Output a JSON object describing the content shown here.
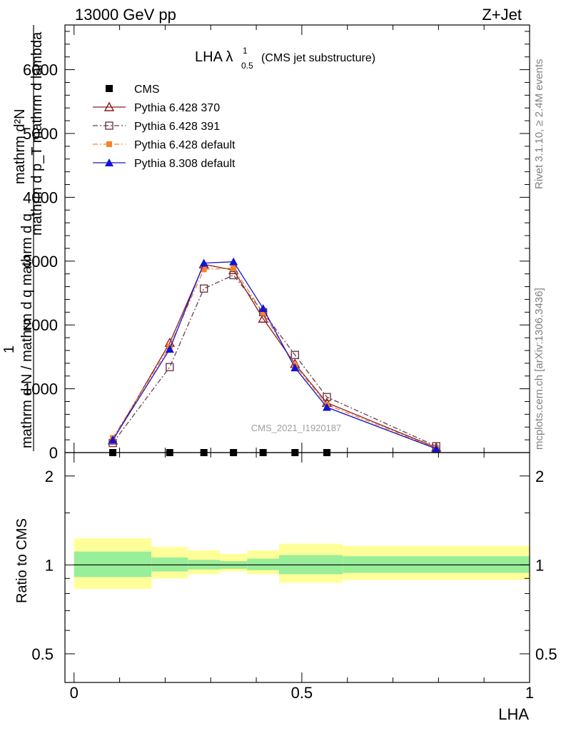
{
  "header": {
    "left": "13000 GeV pp",
    "right": "Z+Jet"
  },
  "side_labels": {
    "rivet": "Rivet 3.1.10, ≥ 2.4M events",
    "mcplots": "mcplots.cern.ch [arXiv:1306.3436]"
  },
  "watermark": "CMS_2021_I1920187",
  "colors": {
    "cms": "#000000",
    "py370": "#8b1a1a",
    "py391": "#6b3a4a",
    "py6def": "#f5842a",
    "py8def": "#1414d0",
    "band_inner": "#99ee99",
    "band_outer": "#ffff99"
  },
  "chart_data": [
    {
      "type": "line",
      "title_main": "LHA λ",
      "title_sup": "1",
      "title_sub": "0.5",
      "title_suffix": "(CMS jet substructure)",
      "ylabel_num": "mathrm d²N",
      "ylabel_num2": "mathrm d p_T mathrm d lambda",
      "ylabel_one": "1",
      "ylabel_den": "mathrm d N / mathrm d q mathrm d q",
      "ylim": [
        0,
        6700
      ],
      "xlim": [
        -0.02,
        1.0
      ],
      "y_ticks": [
        0,
        1000,
        2000,
        3000,
        4000,
        5000,
        6000
      ],
      "y_tick_labels": [
        "0",
        "1000",
        "2000",
        "3000",
        "4000",
        "5000",
        "6000"
      ],
      "legend_position": "top-left",
      "series": [
        {
          "name": "CMS",
          "key": "cms",
          "marker": "square-filled",
          "line": "none",
          "x": [
            0.085,
            0.21,
            0.285,
            0.35,
            0.415,
            0.485,
            0.555
          ],
          "y": [
            0,
            0,
            0,
            0,
            0,
            0,
            0
          ]
        },
        {
          "name": "Pythia 6.428 370",
          "key": "py370",
          "marker": "triangle-open",
          "line": "solid",
          "x": [
            0.085,
            0.21,
            0.285,
            0.35,
            0.415,
            0.485,
            0.555,
            0.795
          ],
          "y": [
            190,
            1720,
            2950,
            2860,
            2100,
            1390,
            780,
            80
          ]
        },
        {
          "name": "Pythia 6.428 391",
          "key": "py391",
          "marker": "square-open",
          "line": "dashdot",
          "x": [
            0.085,
            0.21,
            0.285,
            0.35,
            0.415,
            0.485,
            0.555,
            0.795
          ],
          "y": [
            150,
            1340,
            2570,
            2780,
            2200,
            1530,
            870,
            100
          ]
        },
        {
          "name": "Pythia 6.428 default",
          "key": "py6def",
          "marker": "square-filled-small",
          "line": "dashdot",
          "x": [
            0.085,
            0.21,
            0.285,
            0.35,
            0.415,
            0.485,
            0.555,
            0.795
          ],
          "y": [
            230,
            1660,
            2870,
            2890,
            2190,
            1370,
            750,
            70
          ]
        },
        {
          "name": "Pythia 8.308 default",
          "key": "py8def",
          "marker": "triangle-filled",
          "line": "solid",
          "x": [
            0.085,
            0.21,
            0.285,
            0.35,
            0.415,
            0.485,
            0.555,
            0.795
          ],
          "y": [
            200,
            1620,
            2970,
            2990,
            2260,
            1330,
            710,
            60
          ]
        }
      ]
    },
    {
      "type": "area",
      "ylabel": "Ratio to CMS",
      "xlabel": "LHA",
      "ylim": [
        0.4,
        2.4
      ],
      "log_y": true,
      "xlim": [
        -0.02,
        1.0
      ],
      "x_ticks": [
        0,
        0.5,
        1
      ],
      "x_tick_labels": [
        "0",
        "0.5",
        "1"
      ],
      "y_tick_labels_major": [
        "0.5",
        "1",
        "2"
      ],
      "y_ticks_major": [
        0.5,
        1,
        2
      ],
      "bins": [
        {
          "lo": 0.0,
          "hi": 0.17,
          "inner_lo": 0.91,
          "inner_hi": 1.11,
          "outer_lo": 0.83,
          "outer_hi": 1.23
        },
        {
          "lo": 0.17,
          "hi": 0.25,
          "inner_lo": 0.95,
          "inner_hi": 1.06,
          "outer_lo": 0.9,
          "outer_hi": 1.15
        },
        {
          "lo": 0.25,
          "hi": 0.32,
          "inner_lo": 0.965,
          "inner_hi": 1.04,
          "outer_lo": 0.93,
          "outer_hi": 1.12
        },
        {
          "lo": 0.32,
          "hi": 0.38,
          "inner_lo": 0.97,
          "inner_hi": 1.03,
          "outer_lo": 0.95,
          "outer_hi": 1.09
        },
        {
          "lo": 0.38,
          "hi": 0.45,
          "inner_lo": 0.96,
          "inner_hi": 1.05,
          "outer_lo": 0.93,
          "outer_hi": 1.12
        },
        {
          "lo": 0.45,
          "hi": 0.59,
          "inner_lo": 0.93,
          "inner_hi": 1.08,
          "outer_lo": 0.87,
          "outer_hi": 1.18
        },
        {
          "lo": 0.59,
          "hi": 1.0,
          "inner_lo": 0.94,
          "inner_hi": 1.07,
          "outer_lo": 0.89,
          "outer_hi": 1.16
        }
      ]
    }
  ]
}
